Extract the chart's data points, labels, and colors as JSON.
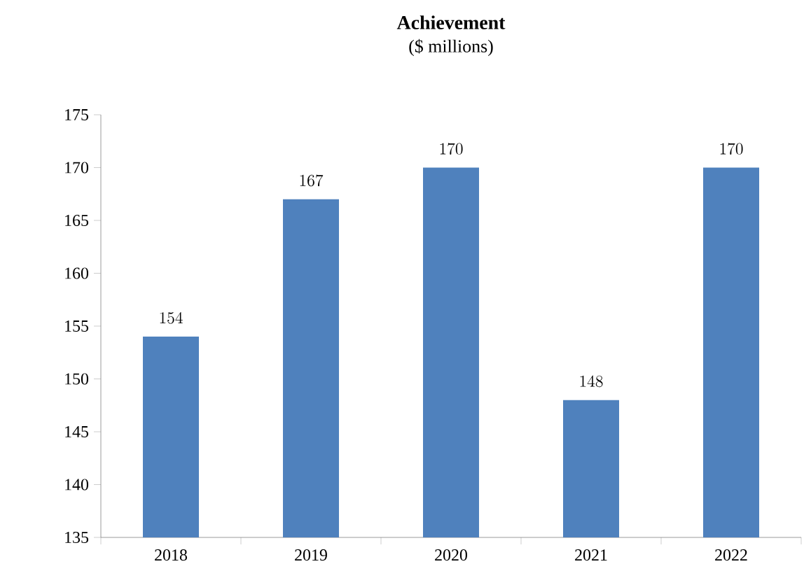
{
  "chart_data": {
    "type": "bar",
    "title": "Achievement",
    "subtitle": "($ millions)",
    "categories": [
      "2018",
      "2019",
      "2020",
      "2021",
      "2022"
    ],
    "values": [
      154,
      167,
      170,
      148,
      170
    ],
    "color": "#4f81bd",
    "ylim": [
      135,
      175
    ],
    "yticks": [
      135,
      140,
      145,
      150,
      155,
      160,
      165,
      170,
      175
    ],
    "data_labels": true
  }
}
